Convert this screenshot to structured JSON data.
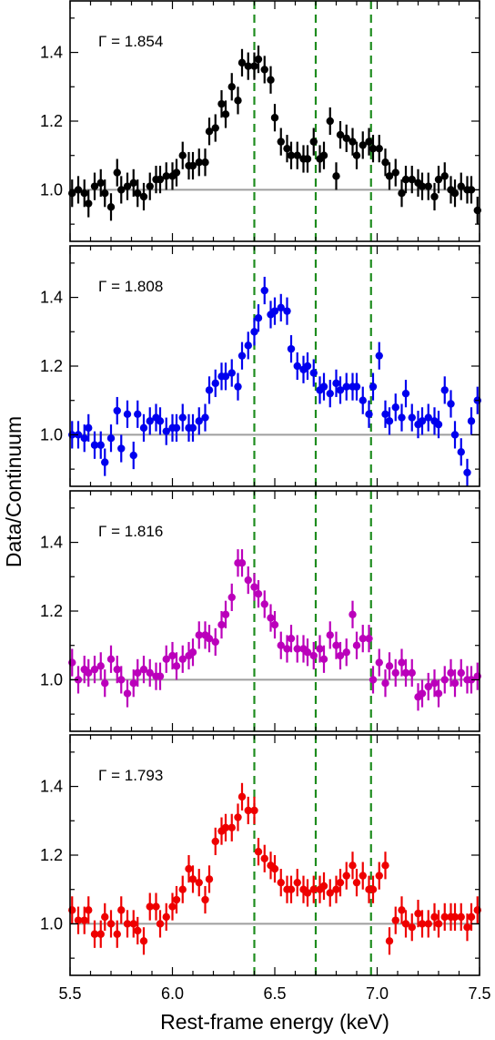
{
  "chart_data": {
    "type": "scatter",
    "xlabel": "Rest-frame energy (keV)",
    "ylabel": "Data/Continuum",
    "xlim": [
      5.5,
      7.5
    ],
    "ylim": [
      0.85,
      1.55
    ],
    "x_ticks": [
      "5.5",
      "6.0",
      "6.5",
      "7.0",
      "7.5"
    ],
    "y_ticks": [
      "1.0",
      "1.2",
      "1.4"
    ],
    "reference_line_y": 1.0,
    "reference_line_color": "#9e9e9e",
    "line_energies": [
      6.4,
      6.7,
      6.97
    ],
    "line_color": "#1e8c1e",
    "panels": [
      {
        "label": "Γ = 1.854",
        "color": "#000000",
        "x": [
          5.51,
          5.54,
          5.57,
          5.59,
          5.62,
          5.65,
          5.67,
          5.7,
          5.73,
          5.75,
          5.78,
          5.81,
          5.83,
          5.86,
          5.89,
          5.92,
          5.94,
          5.97,
          6.0,
          6.02,
          6.05,
          6.08,
          6.1,
          6.13,
          6.16,
          6.18,
          6.21,
          6.24,
          6.26,
          6.29,
          6.32,
          6.34,
          6.37,
          6.4,
          6.42,
          6.45,
          6.48,
          6.5,
          6.53,
          6.56,
          6.58,
          6.61,
          6.64,
          6.66,
          6.69,
          6.72,
          6.74,
          6.77,
          6.8,
          6.82,
          6.85,
          6.88,
          6.9,
          6.93,
          6.96,
          6.98,
          7.01,
          7.04,
          7.06,
          7.09,
          7.12,
          7.14,
          7.17,
          7.2,
          7.22,
          7.25,
          7.28,
          7.3,
          7.33,
          7.36,
          7.38,
          7.41,
          7.44,
          7.46,
          7.49
        ],
        "y": [
          0.99,
          1.0,
          0.99,
          0.96,
          1.01,
          1.02,
          0.99,
          0.95,
          1.05,
          1.0,
          1.01,
          1.02,
          0.99,
          0.98,
          1.01,
          1.03,
          1.03,
          1.04,
          1.04,
          1.05,
          1.1,
          1.07,
          1.07,
          1.08,
          1.08,
          1.17,
          1.18,
          1.25,
          1.22,
          1.3,
          1.26,
          1.37,
          1.36,
          1.36,
          1.38,
          1.35,
          1.32,
          1.21,
          1.14,
          1.12,
          1.1,
          1.1,
          1.09,
          1.09,
          1.14,
          1.09,
          1.1,
          1.2,
          1.04,
          1.16,
          1.15,
          1.14,
          1.1,
          1.13,
          1.14,
          1.12,
          1.12,
          1.08,
          1.04,
          1.05,
          0.99,
          1.03,
          1.03,
          1.02,
          1.01,
          1.01,
          0.98,
          1.03,
          1.04,
          1.0,
          0.99,
          1.01,
          1.0,
          1.0,
          0.94
        ],
        "err": [
          0.04,
          0.04,
          0.04,
          0.04,
          0.04,
          0.04,
          0.04,
          0.04,
          0.04,
          0.04,
          0.04,
          0.04,
          0.04,
          0.04,
          0.04,
          0.04,
          0.04,
          0.04,
          0.04,
          0.04,
          0.04,
          0.04,
          0.04,
          0.04,
          0.04,
          0.04,
          0.04,
          0.04,
          0.04,
          0.04,
          0.04,
          0.04,
          0.04,
          0.04,
          0.04,
          0.04,
          0.04,
          0.04,
          0.04,
          0.04,
          0.04,
          0.04,
          0.04,
          0.04,
          0.04,
          0.04,
          0.04,
          0.04,
          0.04,
          0.04,
          0.04,
          0.04,
          0.04,
          0.04,
          0.04,
          0.04,
          0.04,
          0.04,
          0.04,
          0.04,
          0.04,
          0.04,
          0.04,
          0.04,
          0.04,
          0.04,
          0.04,
          0.04,
          0.04,
          0.04,
          0.04,
          0.04,
          0.04,
          0.04,
          0.04
        ]
      },
      {
        "label": "Γ = 1.808",
        "color": "#0000ee",
        "x": [
          5.51,
          5.54,
          5.57,
          5.59,
          5.62,
          5.65,
          5.67,
          5.7,
          5.73,
          5.75,
          5.78,
          5.81,
          5.83,
          5.86,
          5.89,
          5.92,
          5.94,
          5.97,
          6.0,
          6.02,
          6.05,
          6.08,
          6.1,
          6.13,
          6.16,
          6.18,
          6.21,
          6.24,
          6.26,
          6.29,
          6.32,
          6.34,
          6.37,
          6.4,
          6.42,
          6.45,
          6.48,
          6.5,
          6.53,
          6.56,
          6.58,
          6.61,
          6.64,
          6.66,
          6.69,
          6.72,
          6.74,
          6.77,
          6.8,
          6.82,
          6.85,
          6.88,
          6.9,
          6.93,
          6.96,
          6.98,
          7.01,
          7.04,
          7.06,
          7.09,
          7.12,
          7.14,
          7.17,
          7.2,
          7.22,
          7.25,
          7.28,
          7.3,
          7.33,
          7.36,
          7.38,
          7.41,
          7.44,
          7.46,
          7.49
        ],
        "y": [
          1.0,
          1.0,
          0.99,
          1.02,
          0.97,
          0.97,
          0.92,
          0.99,
          1.07,
          0.96,
          1.06,
          0.94,
          1.06,
          1.02,
          1.04,
          1.05,
          1.04,
          1.01,
          1.02,
          1.02,
          1.05,
          1.02,
          1.02,
          1.04,
          1.05,
          1.13,
          1.15,
          1.17,
          1.17,
          1.18,
          1.14,
          1.23,
          1.26,
          1.3,
          1.34,
          1.42,
          1.35,
          1.36,
          1.37,
          1.36,
          1.25,
          1.2,
          1.19,
          1.2,
          1.18,
          1.13,
          1.14,
          1.12,
          1.15,
          1.13,
          1.14,
          1.14,
          1.14,
          1.1,
          1.06,
          1.14,
          1.23,
          1.06,
          1.04,
          1.08,
          1.05,
          1.12,
          1.05,
          1.03,
          1.04,
          1.05,
          1.04,
          1.03,
          1.13,
          1.09,
          1.0,
          0.95,
          0.89,
          1.04,
          1.1
        ],
        "err": [
          0.04,
          0.04,
          0.04,
          0.04,
          0.04,
          0.04,
          0.04,
          0.04,
          0.04,
          0.04,
          0.04,
          0.04,
          0.04,
          0.04,
          0.04,
          0.04,
          0.04,
          0.04,
          0.04,
          0.04,
          0.04,
          0.04,
          0.04,
          0.04,
          0.04,
          0.04,
          0.04,
          0.04,
          0.04,
          0.04,
          0.04,
          0.04,
          0.04,
          0.04,
          0.04,
          0.04,
          0.04,
          0.04,
          0.04,
          0.04,
          0.04,
          0.04,
          0.04,
          0.04,
          0.04,
          0.04,
          0.04,
          0.04,
          0.04,
          0.04,
          0.04,
          0.04,
          0.04,
          0.04,
          0.04,
          0.04,
          0.04,
          0.04,
          0.04,
          0.04,
          0.04,
          0.04,
          0.04,
          0.04,
          0.04,
          0.04,
          0.04,
          0.04,
          0.04,
          0.04,
          0.04,
          0.04,
          0.04,
          0.04,
          0.04
        ]
      },
      {
        "label": "Γ = 1.816",
        "color": "#bb00bb",
        "x": [
          5.51,
          5.54,
          5.57,
          5.59,
          5.62,
          5.65,
          5.67,
          5.7,
          5.73,
          5.75,
          5.78,
          5.81,
          5.83,
          5.86,
          5.89,
          5.92,
          5.94,
          5.97,
          6.0,
          6.02,
          6.05,
          6.08,
          6.1,
          6.13,
          6.16,
          6.18,
          6.21,
          6.24,
          6.26,
          6.29,
          6.32,
          6.34,
          6.37,
          6.4,
          6.42,
          6.45,
          6.48,
          6.5,
          6.53,
          6.56,
          6.58,
          6.61,
          6.64,
          6.66,
          6.69,
          6.72,
          6.74,
          6.77,
          6.8,
          6.82,
          6.85,
          6.88,
          6.9,
          6.93,
          6.96,
          6.98,
          7.01,
          7.04,
          7.06,
          7.09,
          7.12,
          7.14,
          7.17,
          7.2,
          7.22,
          7.25,
          7.28,
          7.3,
          7.33,
          7.36,
          7.38,
          7.41,
          7.44,
          7.46,
          7.49
        ],
        "y": [
          1.05,
          1.0,
          1.03,
          1.02,
          1.03,
          1.04,
          0.99,
          1.06,
          1.03,
          1.0,
          0.96,
          0.99,
          1.02,
          1.03,
          1.02,
          1.01,
          1.01,
          1.06,
          1.07,
          1.04,
          1.06,
          1.07,
          1.08,
          1.13,
          1.13,
          1.12,
          1.11,
          1.16,
          1.19,
          1.24,
          1.34,
          1.34,
          1.29,
          1.27,
          1.25,
          1.22,
          1.18,
          1.16,
          1.1,
          1.09,
          1.12,
          1.09,
          1.09,
          1.08,
          1.07,
          1.09,
          1.06,
          1.13,
          1.1,
          1.07,
          1.08,
          1.19,
          1.1,
          1.12,
          1.12,
          1.0,
          1.05,
          0.99,
          1.04,
          1.02,
          1.05,
          1.02,
          1.02,
          0.95,
          0.96,
          0.98,
          0.99,
          0.96,
          1.0,
          1.02,
          0.99,
          1.02,
          1.0,
          1.0,
          1.01
        ],
        "err": [
          0.04,
          0.04,
          0.04,
          0.04,
          0.04,
          0.04,
          0.04,
          0.04,
          0.04,
          0.04,
          0.04,
          0.04,
          0.04,
          0.04,
          0.04,
          0.04,
          0.04,
          0.04,
          0.04,
          0.04,
          0.04,
          0.04,
          0.04,
          0.04,
          0.04,
          0.04,
          0.04,
          0.04,
          0.04,
          0.04,
          0.04,
          0.04,
          0.04,
          0.04,
          0.04,
          0.04,
          0.04,
          0.04,
          0.04,
          0.04,
          0.04,
          0.04,
          0.04,
          0.04,
          0.04,
          0.04,
          0.04,
          0.04,
          0.04,
          0.04,
          0.04,
          0.04,
          0.04,
          0.04,
          0.04,
          0.04,
          0.04,
          0.04,
          0.04,
          0.04,
          0.04,
          0.04,
          0.04,
          0.04,
          0.04,
          0.04,
          0.04,
          0.04,
          0.04,
          0.04,
          0.04,
          0.04,
          0.04,
          0.04,
          0.04
        ]
      },
      {
        "label": "Γ = 1.793",
        "color": "#ee0000",
        "x": [
          5.51,
          5.54,
          5.57,
          5.59,
          5.62,
          5.65,
          5.67,
          5.7,
          5.73,
          5.75,
          5.78,
          5.81,
          5.83,
          5.86,
          5.89,
          5.92,
          5.94,
          5.97,
          6.0,
          6.02,
          6.05,
          6.08,
          6.1,
          6.13,
          6.16,
          6.18,
          6.21,
          6.24,
          6.26,
          6.29,
          6.32,
          6.34,
          6.37,
          6.4,
          6.42,
          6.45,
          6.48,
          6.5,
          6.53,
          6.56,
          6.58,
          6.61,
          6.64,
          6.66,
          6.69,
          6.72,
          6.74,
          6.77,
          6.8,
          6.82,
          6.85,
          6.88,
          6.9,
          6.93,
          6.96,
          6.98,
          7.01,
          7.04,
          7.06,
          7.09,
          7.12,
          7.14,
          7.17,
          7.2,
          7.22,
          7.25,
          7.28,
          7.3,
          7.33,
          7.36,
          7.38,
          7.41,
          7.44,
          7.46,
          7.49
        ],
        "y": [
          1.04,
          1.01,
          1.01,
          1.04,
          0.97,
          0.97,
          1.02,
          1.0,
          0.97,
          1.04,
          1.0,
          1.0,
          0.98,
          0.95,
          1.05,
          1.05,
          1.0,
          1.02,
          1.05,
          1.07,
          1.1,
          1.16,
          1.13,
          1.12,
          1.07,
          1.13,
          1.24,
          1.27,
          1.28,
          1.28,
          1.31,
          1.37,
          1.33,
          1.33,
          1.21,
          1.19,
          1.17,
          1.16,
          1.12,
          1.1,
          1.1,
          1.12,
          1.1,
          1.09,
          1.1,
          1.1,
          1.11,
          1.09,
          1.1,
          1.12,
          1.14,
          1.17,
          1.12,
          1.14,
          1.1,
          1.1,
          1.14,
          1.17,
          0.95,
          1.01,
          1.04,
          1.0,
          0.99,
          1.03,
          1.0,
          1.0,
          1.02,
          1.0,
          1.02,
          1.02,
          1.02,
          1.02,
          0.99,
          1.02,
          1.04
        ],
        "err": [
          0.04,
          0.04,
          0.04,
          0.04,
          0.04,
          0.04,
          0.04,
          0.04,
          0.04,
          0.04,
          0.04,
          0.04,
          0.04,
          0.04,
          0.04,
          0.04,
          0.04,
          0.04,
          0.04,
          0.04,
          0.04,
          0.04,
          0.04,
          0.04,
          0.04,
          0.04,
          0.04,
          0.04,
          0.04,
          0.04,
          0.04,
          0.04,
          0.04,
          0.04,
          0.04,
          0.04,
          0.04,
          0.04,
          0.04,
          0.04,
          0.04,
          0.04,
          0.04,
          0.04,
          0.04,
          0.04,
          0.04,
          0.04,
          0.04,
          0.04,
          0.04,
          0.04,
          0.04,
          0.04,
          0.04,
          0.04,
          0.04,
          0.04,
          0.04,
          0.04,
          0.04,
          0.04,
          0.04,
          0.04,
          0.04,
          0.04,
          0.04,
          0.04,
          0.04,
          0.04,
          0.04,
          0.04,
          0.04,
          0.04,
          0.04
        ]
      }
    ]
  }
}
